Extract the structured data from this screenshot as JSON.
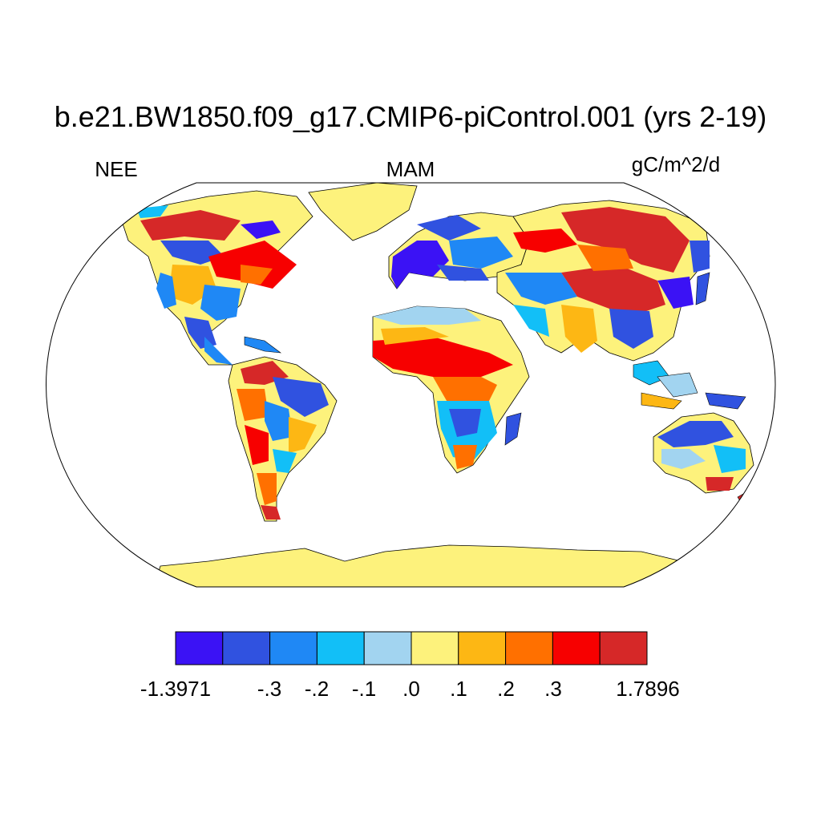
{
  "title": "b.e21.BW1850.f09_g17.CMIP6-piControl.001 (yrs 2-19)",
  "left_label": "NEE",
  "center_label": "MAM",
  "right_label": "gC/m^2/d",
  "colorbar": {
    "colors": [
      "#3b12f5",
      "#3052e0",
      "#1f88f5",
      "#12bff7",
      "#a2d4f0",
      "#fdf27c",
      "#fdb714",
      "#ff7000",
      "#f70000",
      "#d62828"
    ],
    "labels": [
      "-1.3971",
      "-.3",
      "-.2",
      "-.1",
      ".0",
      ".1",
      ".2",
      ".3",
      "1.7896"
    ]
  }
}
